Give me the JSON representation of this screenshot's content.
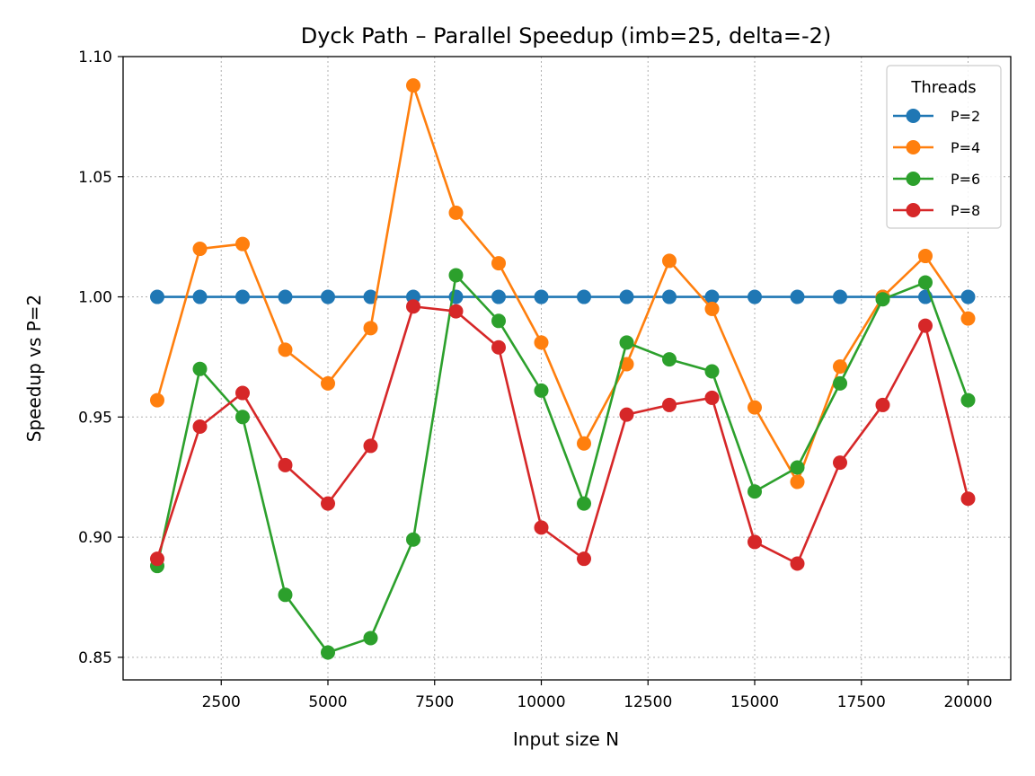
{
  "chart_data": {
    "type": "line",
    "title": "Dyck Path – Parallel Speedup (imb=25, delta=-2)",
    "xlabel": "Input size N",
    "ylabel": "Speedup vs P=2",
    "x": [
      1000,
      2000,
      3000,
      4000,
      5000,
      6000,
      7000,
      8000,
      9000,
      10000,
      11000,
      12000,
      13000,
      14000,
      15000,
      16000,
      17000,
      18000,
      19000,
      20000
    ],
    "xlim": [
      200,
      21000
    ],
    "ylim": [
      0.8406,
      1.1
    ],
    "xticks": [
      2500,
      5000,
      7500,
      10000,
      12500,
      15000,
      17500,
      20000
    ],
    "yticks": [
      0.85,
      0.9,
      0.95,
      1.0,
      1.05,
      1.1
    ],
    "xtick_labels": [
      "2500",
      "5000",
      "7500",
      "10000",
      "12500",
      "15000",
      "17500",
      "20000"
    ],
    "ytick_labels": [
      "0.85",
      "0.90",
      "0.95",
      "1.00",
      "1.05",
      "1.10"
    ],
    "grid": true,
    "legend": {
      "title": "Threads",
      "placement": "top-right"
    },
    "series": [
      {
        "name": "P=2",
        "color": "#1f77b4",
        "values": [
          1.0,
          1.0,
          1.0,
          1.0,
          1.0,
          1.0,
          1.0,
          1.0,
          1.0,
          1.0,
          1.0,
          1.0,
          1.0,
          1.0,
          1.0,
          1.0,
          1.0,
          1.0,
          1.0,
          1.0
        ]
      },
      {
        "name": "P=4",
        "color": "#ff7f0e",
        "values": [
          0.957,
          1.02,
          1.022,
          0.978,
          0.964,
          0.987,
          1.088,
          1.035,
          1.014,
          0.981,
          0.939,
          0.972,
          1.015,
          0.995,
          0.954,
          0.923,
          0.971,
          1.0,
          1.017,
          0.991
        ]
      },
      {
        "name": "P=6",
        "color": "#2ca02c",
        "values": [
          0.888,
          0.97,
          0.95,
          0.876,
          0.852,
          0.858,
          0.899,
          1.009,
          0.99,
          0.961,
          0.914,
          0.981,
          0.974,
          0.969,
          0.919,
          0.929,
          0.964,
          0.999,
          1.006,
          0.957
        ]
      },
      {
        "name": "P=8",
        "color": "#d62728",
        "values": [
          0.891,
          0.946,
          0.96,
          0.93,
          0.914,
          0.938,
          0.996,
          0.994,
          0.979,
          0.904,
          0.891,
          0.951,
          0.955,
          0.958,
          0.898,
          0.889,
          0.931,
          0.955,
          0.988,
          0.916
        ]
      }
    ]
  }
}
